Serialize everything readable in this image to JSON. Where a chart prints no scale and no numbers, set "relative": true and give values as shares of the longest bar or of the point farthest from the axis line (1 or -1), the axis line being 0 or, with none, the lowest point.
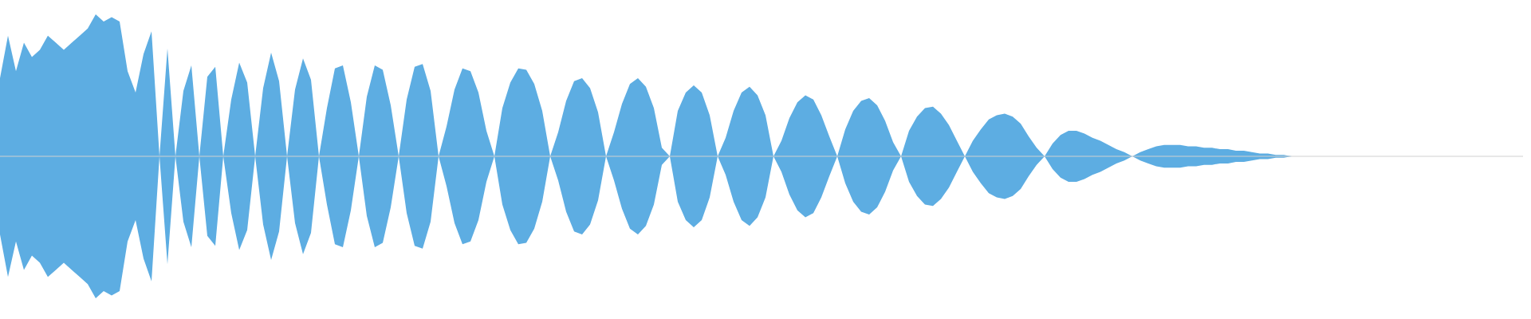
{
  "chart_data": {
    "type": "area",
    "relative": true,
    "categories": [
      null,
      null,
      null,
      null,
      null,
      null,
      null,
      null,
      null,
      null,
      null,
      null,
      null,
      null,
      null,
      null,
      null,
      null,
      null,
      null,
      null,
      null,
      null,
      null,
      null,
      null,
      null,
      null,
      null,
      null,
      null,
      null,
      null,
      null,
      null,
      null,
      null,
      null,
      null,
      null,
      null,
      null,
      null,
      null,
      null,
      null,
      null,
      null,
      null,
      null,
      null,
      null,
      null,
      null,
      null,
      null,
      null,
      null,
      null,
      null,
      null,
      null,
      null,
      null,
      null,
      null,
      null,
      null,
      null,
      null,
      null,
      null,
      null,
      null,
      null,
      null,
      null,
      null,
      null,
      null,
      null,
      null,
      null,
      null,
      null,
      null,
      null,
      null,
      null,
      null,
      null,
      null,
      null,
      null,
      null,
      null,
      null,
      null,
      null,
      null,
      null,
      null,
      null,
      null,
      null,
      null,
      null,
      null,
      null,
      null,
      null,
      null,
      null,
      null,
      null,
      null,
      null,
      null,
      null,
      null,
      null,
      null,
      null,
      null,
      null,
      null,
      null,
      null,
      null,
      null,
      null,
      null,
      null,
      null,
      null,
      null,
      null,
      null,
      null,
      null,
      null,
      null,
      null,
      null,
      null,
      null,
      null,
      null,
      null,
      null,
      null,
      null,
      null,
      null,
      null,
      null,
      null,
      null,
      null,
      null,
      null,
      null,
      null,
      null,
      null,
      null,
      null,
      null,
      null,
      null,
      null,
      null,
      null,
      null,
      null,
      null,
      null,
      null,
      null,
      null,
      null,
      null,
      null,
      null,
      null,
      null,
      null,
      null,
      null,
      null,
      null,
      null
    ],
    "series": [
      {
        "color": "#5dade2",
        "values": [
          0.55,
          0.85,
          0.6,
          0.8,
          0.7,
          0.75,
          0.85,
          0.8,
          0.75,
          0.8,
          0.85,
          0.9,
          1,
          0.95,
          0.98,
          0.95,
          0.6,
          0.45,
          0.72,
          0.88,
          0,
          0.76,
          0,
          0.46,
          0.64,
          0,
          0.56,
          0.63,
          0,
          0.4,
          0.66,
          0.52,
          0,
          0.48,
          0.73,
          0.53,
          0,
          0.47,
          0.69,
          0.54,
          0,
          0.34,
          0.62,
          0.64,
          0.38,
          0,
          0.42,
          0.64,
          0.61,
          0.36,
          0,
          0.4,
          0.63,
          0.65,
          0.46,
          0,
          0.21,
          0.47,
          0.62,
          0.6,
          0.45,
          0.18,
          0,
          0.34,
          0.52,
          0.62,
          0.61,
          0.51,
          0.32,
          0,
          0.17,
          0.39,
          0.53,
          0.55,
          0.48,
          0.31,
          0,
          0.17,
          0.37,
          0.51,
          0.55,
          0.49,
          0.34,
          0.06,
          0,
          0.32,
          0.45,
          0.5,
          0.45,
          0.29,
          0,
          0.13,
          0.32,
          0.45,
          0.49,
          0.43,
          0.29,
          0,
          0.11,
          0.27,
          0.38,
          0.43,
          0.4,
          0.29,
          0.14,
          0,
          0.19,
          0.32,
          0.39,
          0.41,
          0.36,
          0.25,
          0.1,
          0,
          0.18,
          0.28,
          0.34,
          0.35,
          0.3,
          0.22,
          0.11,
          0,
          0.11,
          0.19,
          0.26,
          0.29,
          0.3,
          0.28,
          0.23,
          0.14,
          0.06,
          0,
          0.09,
          0.15,
          0.18,
          0.18,
          0.16,
          0.13,
          0.11,
          0.08,
          0.05,
          0.03,
          0,
          0.03,
          0.05,
          0.07,
          0.08,
          0.08,
          0.08,
          0.07,
          0.07,
          0.06,
          0.06,
          0.05,
          0.05,
          0.04,
          0.04,
          0.03,
          0.02,
          0.02,
          0.01,
          0.01,
          0,
          null,
          null,
          null,
          null,
          null,
          null,
          null,
          null,
          null,
          null,
          null,
          null,
          null,
          null,
          null,
          null,
          null,
          null,
          null,
          null,
          null,
          null,
          null,
          null,
          null,
          null,
          null,
          null,
          null
        ]
      },
      {
        "color": "#5dade2",
        "values": [
          -0.55,
          -0.85,
          -0.6,
          -0.8,
          -0.7,
          -0.75,
          -0.85,
          -0.8,
          -0.75,
          -0.8,
          -0.85,
          -0.9,
          -1,
          -0.95,
          -0.98,
          -0.95,
          -0.6,
          -0.45,
          -0.72,
          -0.88,
          0,
          -0.76,
          0,
          -0.46,
          -0.64,
          0,
          -0.56,
          -0.63,
          0,
          -0.4,
          -0.66,
          -0.52,
          0,
          -0.48,
          -0.73,
          -0.53,
          0,
          -0.47,
          -0.69,
          -0.54,
          0,
          -0.34,
          -0.62,
          -0.64,
          -0.38,
          0,
          -0.42,
          -0.64,
          -0.61,
          -0.36,
          0,
          -0.4,
          -0.63,
          -0.65,
          -0.46,
          0,
          -0.21,
          -0.47,
          -0.62,
          -0.6,
          -0.45,
          -0.18,
          0,
          -0.34,
          -0.52,
          -0.62,
          -0.61,
          -0.51,
          -0.32,
          0,
          -0.17,
          -0.39,
          -0.53,
          -0.55,
          -0.48,
          -0.31,
          0,
          -0.17,
          -0.37,
          -0.51,
          -0.55,
          -0.49,
          -0.34,
          -0.06,
          0,
          -0.32,
          -0.45,
          -0.5,
          -0.45,
          -0.29,
          0,
          -0.13,
          -0.32,
          -0.45,
          -0.49,
          -0.43,
          -0.29,
          0,
          -0.11,
          -0.27,
          -0.38,
          -0.43,
          -0.4,
          -0.29,
          -0.14,
          0,
          -0.19,
          -0.32,
          -0.39,
          -0.41,
          -0.36,
          -0.25,
          -0.1,
          0,
          -0.18,
          -0.28,
          -0.34,
          -0.35,
          -0.3,
          -0.22,
          -0.11,
          0,
          -0.11,
          -0.19,
          -0.26,
          -0.29,
          -0.3,
          -0.28,
          -0.23,
          -0.14,
          -0.06,
          0,
          -0.09,
          -0.15,
          -0.18,
          -0.18,
          -0.16,
          -0.13,
          -0.11,
          -0.08,
          -0.05,
          -0.03,
          0,
          -0.03,
          -0.05,
          -0.07,
          -0.08,
          -0.08,
          -0.08,
          -0.07,
          -0.07,
          -0.06,
          -0.06,
          -0.05,
          -0.05,
          -0.04,
          -0.04,
          -0.03,
          -0.02,
          -0.02,
          -0.01,
          -0.01,
          0,
          null,
          null,
          null,
          null,
          null,
          null,
          null,
          null,
          null,
          null,
          null,
          null,
          null,
          null,
          null,
          null,
          null,
          null,
          null,
          null,
          null,
          null,
          null,
          null,
          null,
          null,
          null,
          null,
          null
        ]
      }
    ]
  }
}
